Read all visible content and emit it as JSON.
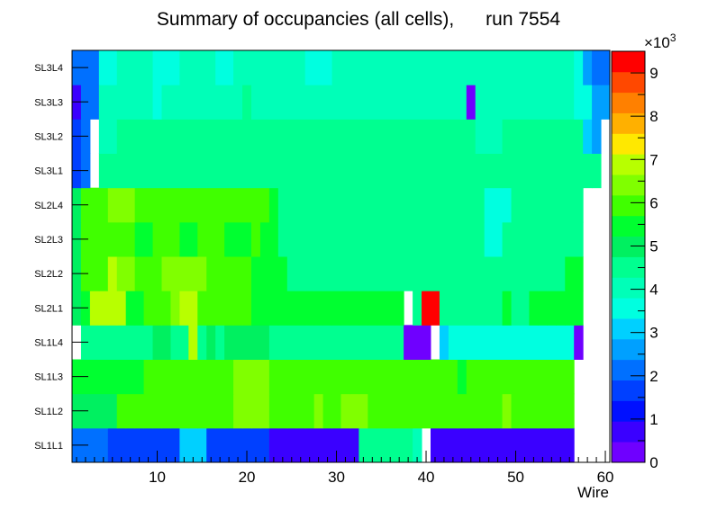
{
  "chart_data": {
    "type": "heatmap",
    "title": "Summary of occupancies (all cells),      run 7554",
    "xlabel": "Wire",
    "ylabel": "",
    "x_range": [
      0.5,
      60.5
    ],
    "x_ticks": [
      10,
      20,
      30,
      40,
      50,
      60
    ],
    "y_categories": [
      "SL1L1",
      "SL1L2",
      "SL1L3",
      "SL1L4",
      "SL2L1",
      "SL2L2",
      "SL2L3",
      "SL2L4",
      "SL3L1",
      "SL3L2",
      "SL3L3",
      "SL3L4"
    ],
    "z_range": [
      0,
      9500
    ],
    "z_exponent_label": "×10",
    "z_exponent_power": "3",
    "z_ticks": [
      {
        "value": 0,
        "label": "0"
      },
      {
        "value": 1000,
        "label": "1"
      },
      {
        "value": 2000,
        "label": "2"
      },
      {
        "value": 3000,
        "label": "3"
      },
      {
        "value": 4000,
        "label": "4"
      },
      {
        "value": 5000,
        "label": "5"
      },
      {
        "value": 6000,
        "label": "6"
      },
      {
        "value": 7000,
        "label": "7"
      },
      {
        "value": 8000,
        "label": "8"
      },
      {
        "value": 9000,
        "label": "9"
      }
    ],
    "palette": [
      "#6f00ff",
      "#3a00ff",
      "#0010ff",
      "#0040ff",
      "#0070ff",
      "#00a0ff",
      "#00d0ff",
      "#00ffe0",
      "#00ffb8",
      "#00ff90",
      "#00f060",
      "#00ff30",
      "#40ff00",
      "#80ff00",
      "#b8ff00",
      "#ffe800",
      "#ffb000",
      "#ff8000",
      "#ff4800",
      "#ff0000"
    ],
    "x_wires": [
      1,
      2,
      3,
      4,
      5,
      6,
      7,
      8,
      9,
      10,
      11,
      12,
      13,
      14,
      15,
      16,
      17,
      18,
      19,
      20,
      21,
      22,
      23,
      24,
      25,
      26,
      27,
      28,
      29,
      30,
      31,
      32,
      33,
      34,
      35,
      36,
      37,
      38,
      39,
      40,
      41,
      42,
      43,
      44,
      45,
      46,
      47,
      48,
      49,
      50,
      51,
      52,
      53,
      54,
      55,
      56,
      57,
      58,
      59,
      60
    ],
    "rows": [
      [
        2200,
        2200,
        2200,
        2200,
        1500,
        1500,
        1500,
        1500,
        1500,
        1500,
        1500,
        1500,
        3300,
        3300,
        3300,
        1500,
        1500,
        1500,
        1500,
        1500,
        1500,
        1500,
        900,
        900,
        900,
        900,
        900,
        900,
        900,
        900,
        900,
        900,
        4700,
        4700,
        4700,
        4700,
        4700,
        4700,
        4000,
        null,
        900,
        900,
        900,
        900,
        900,
        900,
        900,
        500,
        900,
        900,
        900,
        900,
        900,
        900,
        900,
        900,
        null,
        null,
        null,
        null
      ],
      [
        5200,
        5200,
        5200,
        5200,
        5200,
        6000,
        6000,
        6000,
        6000,
        6000,
        6000,
        6000,
        6000,
        6000,
        6000,
        6000,
        6000,
        6000,
        6200,
        6200,
        6200,
        6200,
        6000,
        6000,
        6000,
        6000,
        6000,
        6200,
        6000,
        6000,
        6200,
        6200,
        6200,
        6000,
        6000,
        6000,
        6000,
        6000,
        6000,
        6000,
        6000,
        6000,
        6000,
        6000,
        6000,
        6000,
        6000,
        6000,
        6200,
        6000,
        6000,
        6000,
        6000,
        6000,
        6000,
        6000,
        null,
        null,
        null,
        null
      ],
      [
        5400,
        5400,
        5600,
        5600,
        5600,
        5600,
        5600,
        5600,
        5800,
        5800,
        5800,
        5800,
        5800,
        5800,
        5800,
        5800,
        5800,
        5800,
        6200,
        6200,
        6200,
        6200,
        5800,
        5800,
        5800,
        5800,
        5800,
        6000,
        6000,
        6000,
        6000,
        5800,
        5800,
        5800,
        5800,
        5800,
        5800,
        5800,
        5800,
        5800,
        5800,
        5800,
        5800,
        5400,
        5800,
        5800,
        5800,
        5800,
        5800,
        5800,
        5800,
        5800,
        5800,
        5800,
        5800,
        5800,
        null,
        null,
        null,
        null
      ],
      [
        null,
        4700,
        4700,
        4700,
        4700,
        4700,
        4700,
        4700,
        4700,
        5000,
        5000,
        4700,
        4700,
        7000,
        4700,
        5200,
        4700,
        5200,
        5200,
        5200,
        5200,
        5200,
        4600,
        4600,
        4600,
        4600,
        4600,
        4600,
        4600,
        4600,
        4600,
        4500,
        4500,
        4700,
        4700,
        4600,
        4700,
        300,
        300,
        300,
        null,
        3300,
        3500,
        3500,
        3500,
        3500,
        3500,
        3500,
        3500,
        3500,
        3500,
        3500,
        3500,
        3500,
        3500,
        3500,
        300,
        null,
        null,
        null
      ],
      [
        5200,
        5600,
        6700,
        6700,
        6700,
        6700,
        5600,
        5600,
        6000,
        6000,
        6000,
        6400,
        6700,
        6700,
        6000,
        6000,
        6000,
        6000,
        6000,
        6000,
        5600,
        5600,
        5400,
        5400,
        5400,
        5400,
        5600,
        5600,
        5400,
        5400,
        5400,
        5400,
        5400,
        5400,
        5400,
        5400,
        5400,
        null,
        4300,
        9500,
        9500,
        4300,
        4300,
        4300,
        4300,
        4300,
        4300,
        4300,
        5400,
        4300,
        4300,
        5400,
        5400,
        5400,
        5400,
        5400,
        5400,
        null,
        null,
        null
      ],
      [
        5200,
        6000,
        6000,
        6000,
        6700,
        6300,
        6300,
        6000,
        6000,
        6000,
        6300,
        6300,
        6300,
        6300,
        6300,
        6000,
        6000,
        6000,
        6000,
        6000,
        5600,
        5600,
        5600,
        5600,
        4700,
        4700,
        4700,
        4700,
        4700,
        4700,
        4700,
        4700,
        4700,
        4700,
        4700,
        4700,
        4700,
        4500,
        4500,
        4700,
        4500,
        4700,
        4700,
        4700,
        4700,
        4700,
        4700,
        4700,
        4700,
        4700,
        4700,
        4700,
        4700,
        4700,
        4700,
        5400,
        5400,
        null,
        null,
        null
      ],
      [
        5200,
        5800,
        5800,
        5800,
        5800,
        5800,
        5800,
        5400,
        5400,
        5800,
        5800,
        5800,
        5400,
        5400,
        5800,
        5800,
        5800,
        5400,
        5400,
        5400,
        5800,
        5400,
        5400,
        4700,
        4700,
        4700,
        4700,
        4700,
        4700,
        4700,
        4700,
        4700,
        4700,
        4700,
        4700,
        4700,
        4700,
        4700,
        4500,
        4500,
        4500,
        4500,
        4500,
        4500,
        4700,
        4700,
        3500,
        3500,
        4500,
        4500,
        4500,
        4500,
        4500,
        4500,
        4500,
        4700,
        4700,
        null,
        null,
        null
      ],
      [
        5200,
        5800,
        5800,
        5800,
        6300,
        6300,
        6300,
        5800,
        5800,
        6000,
        6000,
        6000,
        6000,
        6000,
        6000,
        6000,
        5800,
        5800,
        6000,
        6000,
        5800,
        5800,
        5400,
        4700,
        4700,
        4700,
        4700,
        4700,
        4700,
        4700,
        4700,
        4700,
        4700,
        4700,
        4700,
        4700,
        4700,
        4500,
        4500,
        4500,
        4500,
        4500,
        4500,
        4500,
        4500,
        4500,
        3500,
        3500,
        3500,
        4500,
        4500,
        4500,
        4500,
        4500,
        4500,
        4700,
        4700,
        null,
        null,
        null
      ],
      [
        1500,
        2200,
        null,
        4300,
        4300,
        4300,
        4300,
        4300,
        4300,
        4300,
        4300,
        4300,
        4300,
        4300,
        4300,
        4300,
        4300,
        4300,
        4300,
        4300,
        4500,
        4500,
        4500,
        4500,
        4300,
        4300,
        4300,
        4300,
        4700,
        4300,
        4300,
        4300,
        4700,
        4700,
        4700,
        4700,
        4300,
        4300,
        4300,
        4300,
        4300,
        4300,
        4300,
        4300,
        4700,
        4700,
        4700,
        4700,
        4700,
        4700,
        4700,
        4700,
        4500,
        4500,
        4500,
        4700,
        4700,
        4300,
        4300,
        null
      ],
      [
        1500,
        2200,
        null,
        3800,
        3800,
        4300,
        4300,
        4300,
        4300,
        4300,
        4300,
        4300,
        4300,
        4300,
        4300,
        4300,
        4300,
        4300,
        4500,
        4500,
        4500,
        4500,
        4300,
        4300,
        4300,
        4300,
        4300,
        4700,
        4300,
        4300,
        4500,
        4300,
        4300,
        4300,
        4300,
        4300,
        4300,
        4300,
        4300,
        4700,
        4300,
        4500,
        4300,
        4300,
        4300,
        3800,
        3800,
        3800,
        4300,
        4300,
        4300,
        4300,
        4300,
        4300,
        4300,
        4300,
        4300,
        3000,
        2600,
        null
      ],
      [
        900,
        2300,
        2300,
        4000,
        4000,
        4000,
        4000,
        4000,
        4000,
        3500,
        4000,
        4000,
        4000,
        4000,
        4000,
        4000,
        4000,
        4000,
        4000,
        4300,
        4000,
        4000,
        4000,
        4000,
        4000,
        4000,
        4000,
        4000,
        4000,
        4000,
        4000,
        4000,
        4000,
        4000,
        4000,
        4000,
        4000,
        4000,
        4000,
        4000,
        4000,
        4000,
        4000,
        4000,
        200,
        4000,
        4000,
        4000,
        4000,
        4000,
        4000,
        4000,
        4000,
        4000,
        4000,
        4000,
        3500,
        3500,
        2800,
        2800
      ],
      [
        2000,
        2000,
        2000,
        3500,
        3500,
        3800,
        3800,
        3800,
        3800,
        3500,
        3500,
        3500,
        4000,
        4000,
        3800,
        3800,
        3500,
        3500,
        3800,
        3800,
        3800,
        3800,
        3800,
        3800,
        3800,
        3800,
        3500,
        3500,
        3500,
        4000,
        4000,
        4000,
        4000,
        4000,
        4000,
        4000,
        4000,
        4000,
        4000,
        4000,
        4000,
        4000,
        4000,
        4000,
        4000,
        4000,
        4000,
        4000,
        4000,
        4000,
        4000,
        4000,
        4000,
        4000,
        4000,
        4000,
        3500,
        2800,
        2000,
        2000
      ]
    ]
  }
}
